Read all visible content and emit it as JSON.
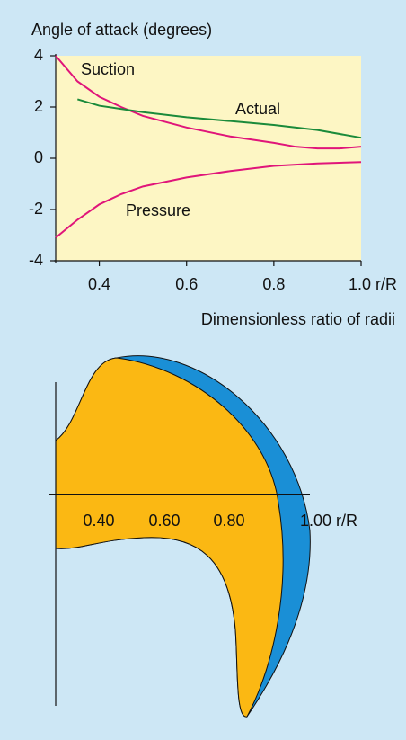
{
  "chart_data": {
    "type": "line",
    "title": "Angle of attack (degrees)",
    "x_label": "Dimensionless ratio of radii",
    "xlim": [
      0.3,
      1.0
    ],
    "ylim": [
      -4,
      4
    ],
    "xticks": [
      0.4,
      0.6,
      0.8,
      {
        "value": 1.0,
        "label": "1.0 r/R"
      }
    ],
    "yticks": [
      4,
      2,
      0,
      -2,
      -4
    ],
    "series": [
      {
        "name": "Suction",
        "color": "#e0157a",
        "x": [
          0.3,
          0.35,
          0.4,
          0.45,
          0.5,
          0.6,
          0.7,
          0.8,
          0.85,
          0.9,
          0.95,
          1.0
        ],
        "values": [
          4.0,
          3.0,
          2.4,
          2.0,
          1.65,
          1.2,
          0.85,
          0.6,
          0.45,
          0.38,
          0.38,
          0.45
        ]
      },
      {
        "name": "Actual",
        "color": "#1a8a3a",
        "x": [
          0.35,
          0.4,
          0.5,
          0.6,
          0.7,
          0.8,
          0.9,
          1.0
        ],
        "values": [
          2.3,
          2.05,
          1.8,
          1.6,
          1.45,
          1.3,
          1.1,
          0.8
        ]
      },
      {
        "name": "Pressure",
        "color": "#e0157a",
        "x": [
          0.3,
          0.35,
          0.4,
          0.45,
          0.5,
          0.6,
          0.7,
          0.8,
          0.9,
          1.0
        ],
        "values": [
          -3.1,
          -2.4,
          -1.8,
          -1.4,
          -1.1,
          -0.75,
          -0.5,
          -0.3,
          -0.2,
          -0.15
        ]
      }
    ]
  },
  "blade_diagram": {
    "axis_labels": [
      "0.40",
      "0.60",
      "0.80",
      "1.00 r/R"
    ]
  }
}
